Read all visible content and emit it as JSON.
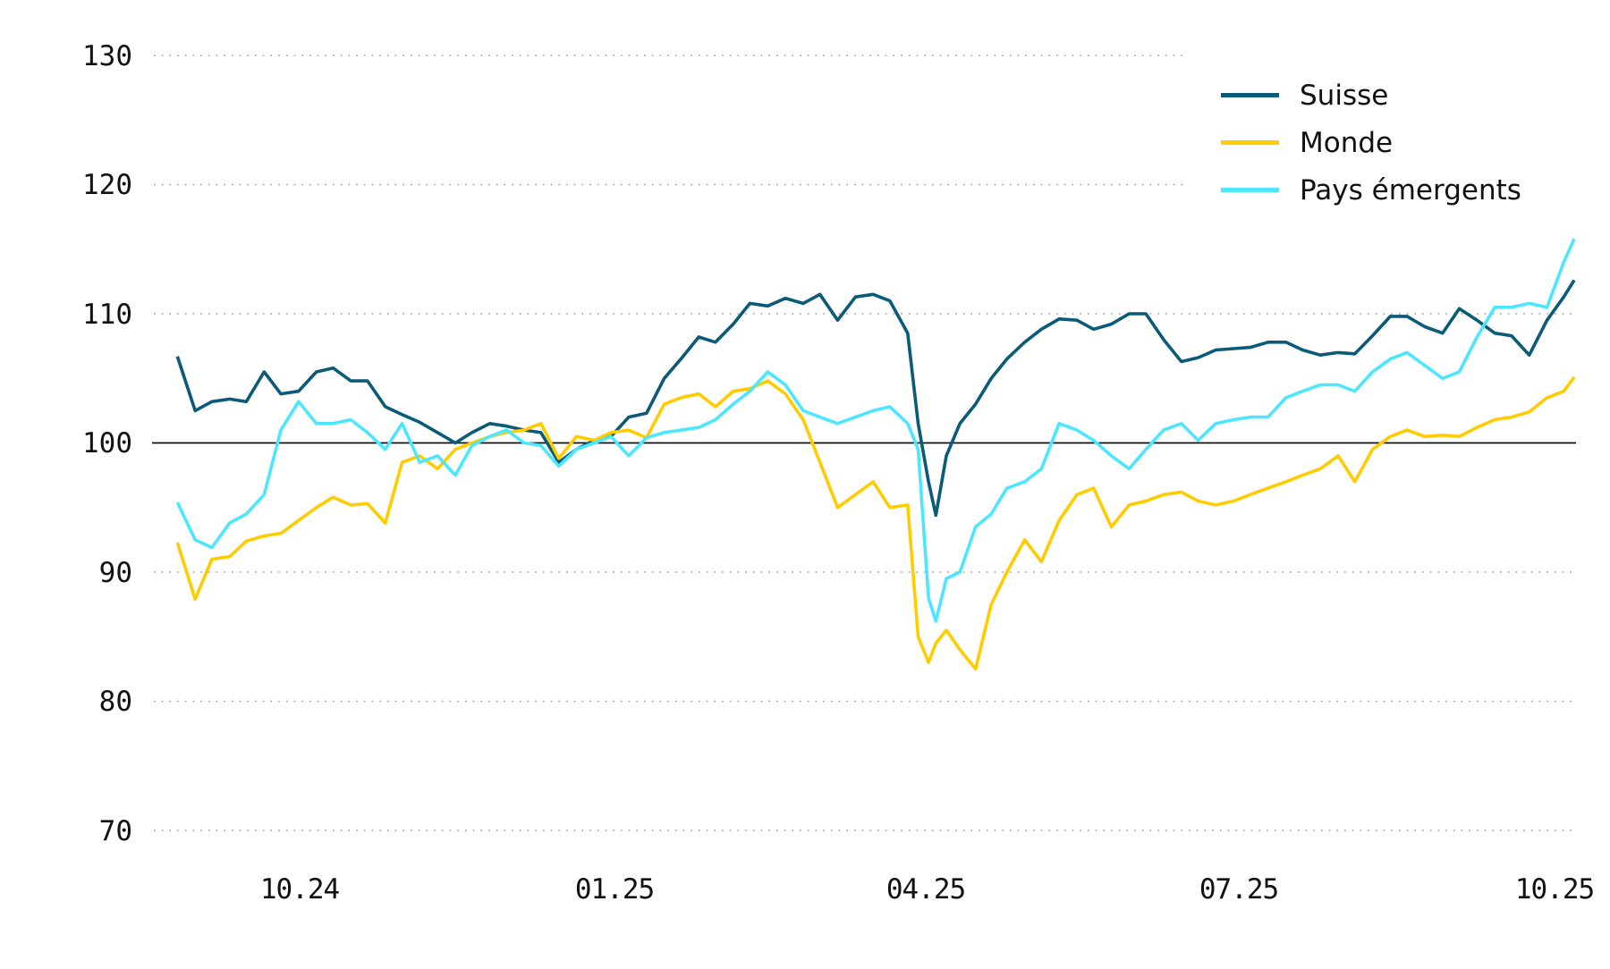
{
  "chart_data": {
    "type": "line",
    "title": "",
    "xlabel": "",
    "ylabel": "",
    "ylim": [
      70,
      130
    ],
    "yticks": [
      130,
      120,
      110,
      100,
      90,
      80,
      70
    ],
    "ytick_labels": [
      "130",
      "120",
      "110",
      "100",
      "90",
      "80",
      "70"
    ],
    "xticks": [
      0,
      3,
      6,
      9,
      12
    ],
    "xtick_labels": [
      "10.24",
      "01.25",
      "04.25",
      "07.25",
      "10.25"
    ],
    "x_unit": "months relative to 10.24 tick",
    "grid": "horizontal dotted",
    "reference_line": 100,
    "legend_position": "top-right",
    "x": [
      -1.17,
      -1.0,
      -0.84,
      -0.67,
      -0.51,
      -0.34,
      -0.18,
      -0.01,
      0.16,
      0.32,
      0.49,
      0.65,
      0.82,
      0.98,
      1.15,
      1.32,
      1.49,
      1.65,
      1.82,
      1.98,
      2.15,
      2.31,
      2.48,
      2.65,
      2.82,
      2.98,
      3.15,
      3.32,
      3.49,
      3.65,
      3.82,
      3.98,
      4.15,
      4.31,
      4.48,
      4.65,
      4.82,
      4.98,
      5.15,
      5.32,
      5.49,
      5.65,
      5.82,
      5.92,
      6.02,
      6.09,
      6.19,
      6.32,
      6.47,
      6.62,
      6.77,
      6.94,
      7.1,
      7.27,
      7.44,
      7.6,
      7.77,
      7.94,
      8.1,
      8.27,
      8.44,
      8.6,
      8.77,
      8.94,
      9.1,
      9.27,
      9.44,
      9.6,
      9.77,
      9.94,
      10.1,
      10.27,
      10.44,
      10.6,
      10.77,
      10.94,
      11.1,
      11.27,
      11.44,
      11.6,
      11.77,
      11.94,
      12.1,
      12.2
    ],
    "series": [
      {
        "name": "Suisse",
        "color": "#0a5a78",
        "values": [
          106.7,
          102.5,
          103.2,
          103.4,
          103.2,
          105.5,
          103.8,
          104.0,
          105.5,
          105.8,
          104.8,
          104.8,
          102.8,
          102.2,
          101.6,
          100.8,
          100.0,
          100.8,
          101.5,
          101.3,
          101.0,
          100.8,
          98.5,
          99.5,
          100.2,
          100.5,
          102.0,
          102.3,
          105.0,
          106.5,
          108.2,
          107.8,
          109.2,
          110.8,
          110.6,
          111.2,
          110.8,
          111.5,
          109.5,
          111.3,
          111.5,
          111.0,
          108.5,
          101.5,
          97.0,
          94.4,
          99.0,
          101.5,
          103.0,
          105.0,
          106.5,
          107.8,
          108.8,
          109.6,
          109.5,
          108.8,
          109.2,
          110.0,
          110.0,
          108.0,
          106.3,
          106.6,
          107.2,
          107.3,
          107.4,
          107.8,
          107.8,
          107.2,
          106.8,
          107.0,
          106.9,
          108.3,
          109.8,
          109.8,
          109.0,
          108.5,
          110.4,
          109.5,
          108.5,
          108.3,
          106.8,
          109.5,
          111.3,
          112.6
        ]
      },
      {
        "name": "Monde",
        "color": "#ffcc00",
        "values": [
          92.3,
          87.9,
          91.0,
          91.2,
          92.4,
          92.8,
          93.0,
          94.0,
          95.0,
          95.8,
          95.2,
          95.3,
          93.8,
          98.5,
          99.0,
          98.0,
          99.5,
          100.0,
          100.5,
          100.8,
          101.0,
          101.5,
          98.8,
          100.5,
          100.2,
          100.8,
          101.0,
          100.4,
          103.0,
          103.5,
          103.8,
          102.8,
          104.0,
          104.2,
          104.8,
          103.8,
          101.8,
          98.5,
          95.0,
          96.0,
          97.0,
          95.0,
          95.2,
          85.0,
          83.0,
          84.5,
          85.5,
          84.0,
          82.5,
          87.5,
          90.0,
          92.5,
          90.8,
          94.0,
          96.0,
          96.5,
          93.5,
          95.2,
          95.5,
          96.0,
          96.2,
          95.5,
          95.2,
          95.5,
          96.0,
          96.5,
          97.0,
          97.5,
          98.0,
          99.0,
          97.0,
          99.5,
          100.5,
          101.0,
          100.5,
          100.6,
          100.5,
          101.2,
          101.8,
          102.0,
          102.4,
          103.5,
          104.0,
          105.1
        ]
      },
      {
        "name": "Pays émergents",
        "color": "#4de6ff",
        "values": [
          95.4,
          92.5,
          91.9,
          93.8,
          94.5,
          96.0,
          101.0,
          103.2,
          101.5,
          101.5,
          101.8,
          100.8,
          99.5,
          101.5,
          98.5,
          99.0,
          97.5,
          99.8,
          100.5,
          101.0,
          100.0,
          99.8,
          98.2,
          99.5,
          100.0,
          100.5,
          99.0,
          100.4,
          100.8,
          101.0,
          101.2,
          101.8,
          103.0,
          104.0,
          105.5,
          104.5,
          102.5,
          102.0,
          101.5,
          102.0,
          102.5,
          102.8,
          101.5,
          99.5,
          88.0,
          86.2,
          89.5,
          90.0,
          93.5,
          94.5,
          96.5,
          97.0,
          98.0,
          101.5,
          101.0,
          100.2,
          99.0,
          98.0,
          99.5,
          101.0,
          101.5,
          100.2,
          101.5,
          101.8,
          102.0,
          102.0,
          103.5,
          104.0,
          104.5,
          104.5,
          104.0,
          105.5,
          106.5,
          107.0,
          106.0,
          105.0,
          105.5,
          108.2,
          110.5,
          110.5,
          110.8,
          110.5,
          114.0,
          115.8
        ]
      }
    ]
  },
  "legend": {
    "items": [
      {
        "label": "Suisse",
        "color": "#0a5a78"
      },
      {
        "label": "Monde",
        "color": "#ffcc00"
      },
      {
        "label": "Pays émergents",
        "color": "#4de6ff"
      }
    ]
  },
  "axis": {
    "y_labels": [
      "130",
      "120",
      "110",
      "100",
      "90",
      "80",
      "70"
    ],
    "x_labels": [
      "10.24",
      "01.25",
      "04.25",
      "07.25",
      "10.25"
    ]
  }
}
